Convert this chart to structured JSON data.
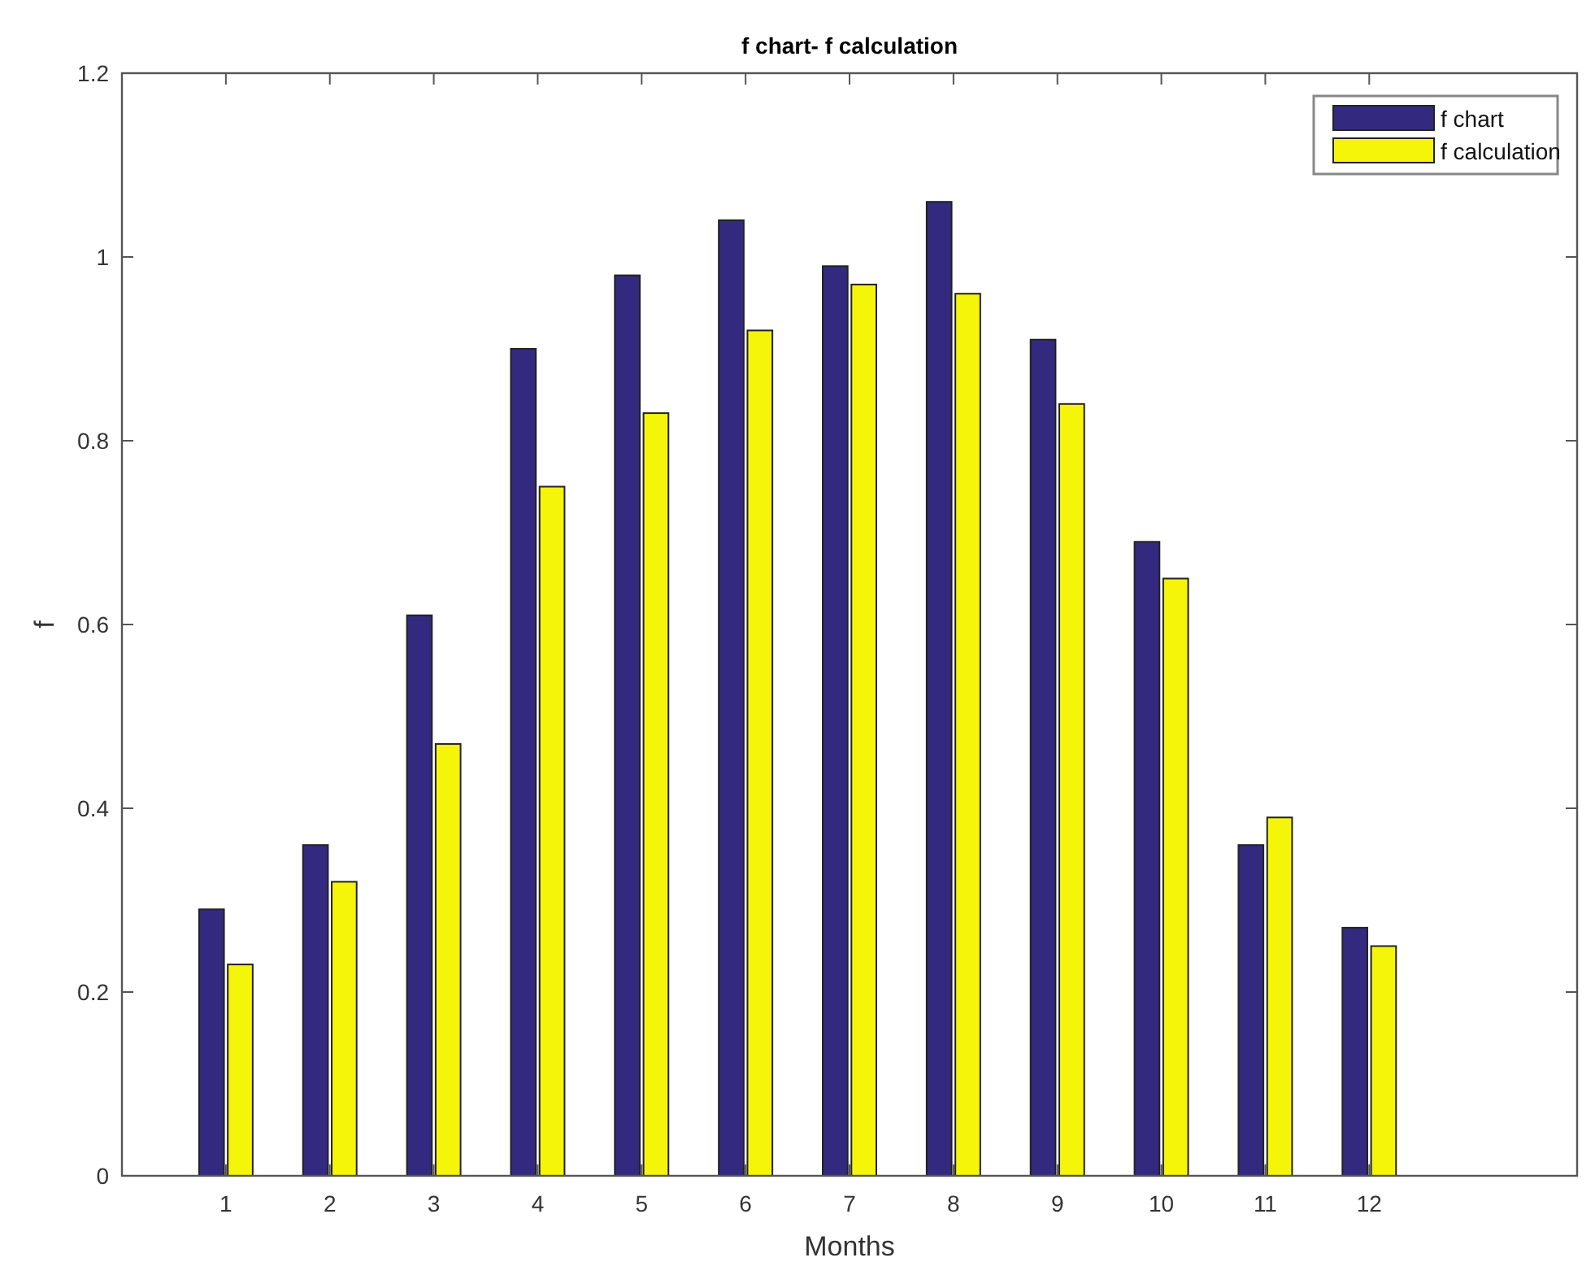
{
  "chart_data": {
    "type": "bar",
    "title": "f chart- f calculation",
    "xlabel": "Months",
    "ylabel": "f",
    "x": [
      1,
      2,
      3,
      4,
      5,
      6,
      7,
      8,
      9,
      10,
      11,
      12
    ],
    "xlim": [
      0,
      14
    ],
    "xticks": [
      1,
      2,
      3,
      4,
      5,
      6,
      7,
      8,
      9,
      10,
      11,
      12
    ],
    "ylim": [
      0,
      1.2
    ],
    "yticks": [
      0,
      0.2,
      0.4,
      0.6,
      0.8,
      1,
      1.2
    ],
    "series": [
      {
        "name": "f chart",
        "color": "#332a80",
        "values": [
          0.29,
          0.36,
          0.61,
          0.9,
          0.98,
          1.04,
          0.99,
          1.06,
          0.91,
          0.69,
          0.36,
          0.27
        ]
      },
      {
        "name": "f calculation",
        "color": "#f5f50a",
        "values": [
          0.23,
          0.32,
          0.47,
          0.75,
          0.83,
          0.92,
          0.97,
          0.96,
          0.84,
          0.65,
          0.39,
          0.25
        ]
      }
    ],
    "legend": "top right",
    "grid": false
  }
}
